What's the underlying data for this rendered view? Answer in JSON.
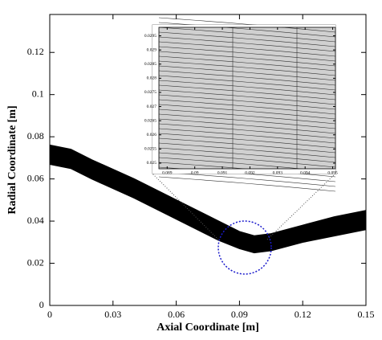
{
  "chart_data": [
    {
      "type": "line",
      "xlabel": "Axial Coordinate [m]",
      "ylabel": "Radial Coordinate [m]",
      "x": [
        0,
        0.01,
        0.02,
        0.04,
        0.06,
        0.08,
        0.09,
        0.097,
        0.105,
        0.12,
        0.135,
        0.15
      ],
      "series": [
        {
          "color": "#000000",
          "values": [
            0.076,
            0.074,
            0.069,
            0.06,
            0.05,
            0.04,
            0.035,
            0.033,
            0.034,
            0.038,
            0.042,
            0.045
          ]
        },
        {
          "color": "#000000",
          "values": [
            0.067,
            0.065,
            0.06,
            0.051,
            0.041,
            0.031,
            0.027,
            0.025,
            0.026,
            0.03,
            0.033,
            0.036
          ]
        }
      ],
      "xlim": [
        0,
        0.15
      ],
      "xticks": [
        0,
        0.03,
        0.06,
        0.09,
        0.12,
        0.15
      ],
      "ylim": [
        0,
        0.138
      ],
      "yticks": [
        0,
        0.02,
        0.04,
        0.06,
        0.08,
        0.1,
        0.12
      ]
    },
    {
      "type": "mesh",
      "xlim": [
        0.0887,
        0.0951
      ],
      "xticks": [
        0.089,
        0.09,
        0.091,
        0.092,
        0.093,
        0.094,
        0.095
      ],
      "ylim": [
        0.0248,
        0.0298
      ],
      "yticks": [
        0.025,
        0.0255,
        0.026,
        0.0265,
        0.027,
        0.0275,
        0.028,
        0.0285,
        0.029,
        0.0295
      ]
    }
  ]
}
